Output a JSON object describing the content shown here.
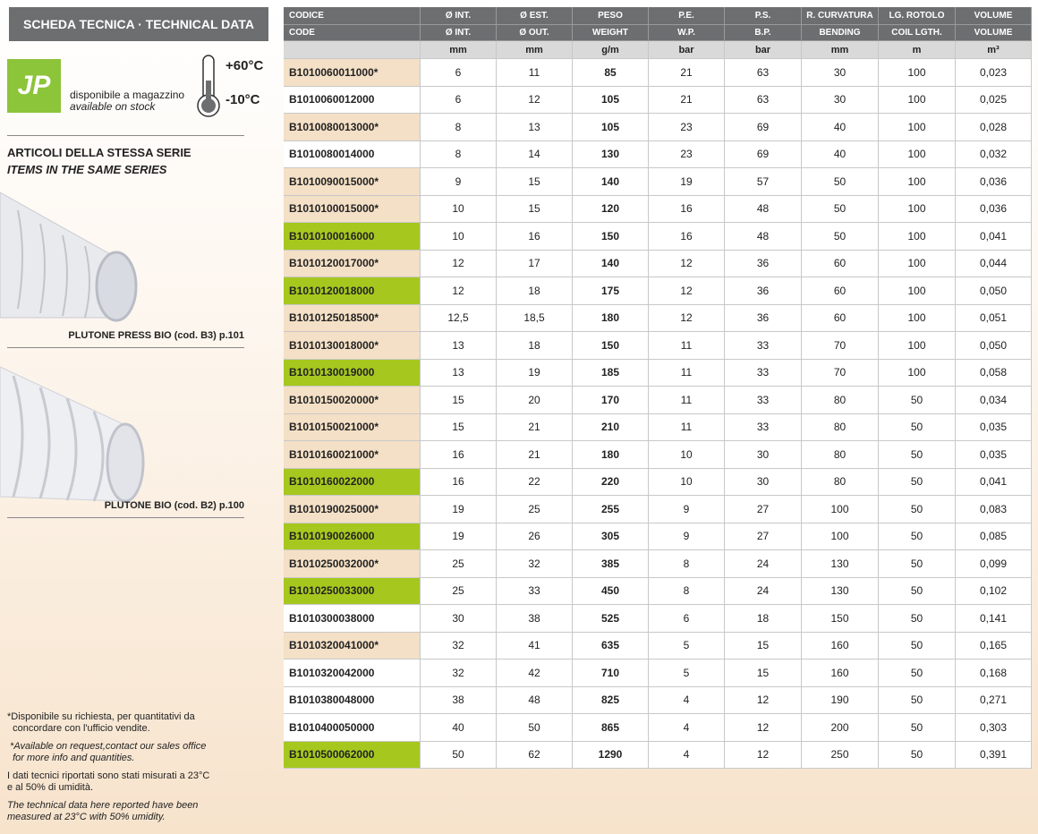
{
  "header": {
    "title": "SCHEDA TECNICA · TECHNICAL DATA"
  },
  "stock": {
    "logo": "JP",
    "label_it": "disponibile a magazzino",
    "label_en": "available on stock"
  },
  "temperature": {
    "max": "+60°C",
    "min": "-10°C"
  },
  "series": {
    "title_it": "ARTICOLI DELLA STESSA SERIE",
    "title_en": "ITEMS IN THE SAME SERIES",
    "items": [
      {
        "caption": "PLUTONE PRESS BIO (cod. B3) p.101"
      },
      {
        "caption": "PLUTONE BIO (cod. B2) p.100"
      }
    ]
  },
  "notes": [
    {
      "lines": [
        "*Disponibile su richiesta, per quantitativi da",
        "  concordare con l'ufficio vendite."
      ],
      "italic": false
    },
    {
      "lines": [
        " *Available on request,contact our sales office",
        "  for more info and quantities."
      ],
      "italic": true
    },
    {
      "lines": [
        "I dati tecnici riportati sono stati misurati a 23°C",
        "e al 50% di umidità."
      ],
      "italic": false
    },
    {
      "lines": [
        "The technical data here reported have been",
        "measured at 23°C with 50% umidity."
      ],
      "italic": true
    }
  ],
  "table": {
    "header_it": [
      "CODICE",
      "Ø INT.",
      "Ø EST.",
      "PESO",
      "P.E.",
      "P.S.",
      "R. CURVATURA",
      "LG. ROTOLO",
      "VOLUME"
    ],
    "header_en": [
      "CODE",
      "Ø INT.",
      "Ø OUT.",
      "WEIGHT",
      "W.P.",
      "B.P.",
      "BENDING",
      "COIL LGTH.",
      "VOLUME"
    ],
    "units": [
      "mm",
      "mm",
      "g/m",
      "bar",
      "bar",
      "mm",
      "m",
      "m³"
    ],
    "code_colors": [
      "#f4e0c6",
      "#ffffff",
      "#f4e0c6",
      "#ffffff",
      "#f4e0c6",
      "#f4e0c6",
      "#a6c81e",
      "#f4e0c6",
      "#a6c81e",
      "#f4e0c6",
      "#f4e0c6",
      "#a6c81e",
      "#f4e0c6",
      "#f4e0c6",
      "#f4e0c6",
      "#a6c81e",
      "#f4e0c6",
      "#a6c81e",
      "#f4e0c6",
      "#a6c81e",
      "#ffffff",
      "#f4e0c6",
      "#ffffff",
      "#ffffff",
      "#ffffff",
      "#a6c81e"
    ],
    "rows": [
      [
        "B1010060011000*",
        "6",
        "11",
        "85",
        "21",
        "63",
        "30",
        "100",
        "0,023"
      ],
      [
        "B1010060012000",
        "6",
        "12",
        "105",
        "21",
        "63",
        "30",
        "100",
        "0,025"
      ],
      [
        "B1010080013000*",
        "8",
        "13",
        "105",
        "23",
        "69",
        "40",
        "100",
        "0,028"
      ],
      [
        "B1010080014000",
        "8",
        "14",
        "130",
        "23",
        "69",
        "40",
        "100",
        "0,032"
      ],
      [
        "B1010090015000*",
        "9",
        "15",
        "140",
        "19",
        "57",
        "50",
        "100",
        "0,036"
      ],
      [
        "B1010100015000*",
        "10",
        "15",
        "120",
        "16",
        "48",
        "50",
        "100",
        "0,036"
      ],
      [
        "B1010100016000",
        "10",
        "16",
        "150",
        "16",
        "48",
        "50",
        "100",
        "0,041"
      ],
      [
        "B1010120017000*",
        "12",
        "17",
        "140",
        "12",
        "36",
        "60",
        "100",
        "0,044"
      ],
      [
        "B1010120018000",
        "12",
        "18",
        "175",
        "12",
        "36",
        "60",
        "100",
        "0,050"
      ],
      [
        "B1010125018500*",
        "12,5",
        "18,5",
        "180",
        "12",
        "36",
        "60",
        "100",
        "0,051"
      ],
      [
        "B1010130018000*",
        "13",
        "18",
        "150",
        "11",
        "33",
        "70",
        "100",
        "0,050"
      ],
      [
        "B1010130019000",
        "13",
        "19",
        "185",
        "11",
        "33",
        "70",
        "100",
        "0,058"
      ],
      [
        "B1010150020000*",
        "15",
        "20",
        "170",
        "11",
        "33",
        "80",
        "50",
        "0,034"
      ],
      [
        "B1010150021000*",
        "15",
        "21",
        "210",
        "11",
        "33",
        "80",
        "50",
        "0,035"
      ],
      [
        "B1010160021000*",
        "16",
        "21",
        "180",
        "10",
        "30",
        "80",
        "50",
        "0,035"
      ],
      [
        "B1010160022000",
        "16",
        "22",
        "220",
        "10",
        "30",
        "80",
        "50",
        "0,041"
      ],
      [
        "B1010190025000*",
        "19",
        "25",
        "255",
        "9",
        "27",
        "100",
        "50",
        "0,083"
      ],
      [
        "B1010190026000",
        "19",
        "26",
        "305",
        "9",
        "27",
        "100",
        "50",
        "0,085"
      ],
      [
        "B1010250032000*",
        "25",
        "32",
        "385",
        "8",
        "24",
        "130",
        "50",
        "0,099"
      ],
      [
        "B1010250033000",
        "25",
        "33",
        "450",
        "8",
        "24",
        "130",
        "50",
        "0,102"
      ],
      [
        "B1010300038000",
        "30",
        "38",
        "525",
        "6",
        "18",
        "150",
        "50",
        "0,141"
      ],
      [
        "B1010320041000*",
        "32",
        "41",
        "635",
        "5",
        "15",
        "160",
        "50",
        "0,165"
      ],
      [
        "B1010320042000",
        "32",
        "42",
        "710",
        "5",
        "15",
        "160",
        "50",
        "0,168"
      ],
      [
        "B1010380048000",
        "38",
        "48",
        "825",
        "4",
        "12",
        "190",
        "50",
        "0,271"
      ],
      [
        "B1010400050000",
        "40",
        "50",
        "865",
        "4",
        "12",
        "200",
        "50",
        "0,303"
      ],
      [
        "B1010500062000",
        "50",
        "62",
        "1290",
        "4",
        "12",
        "250",
        "50",
        "0,391"
      ]
    ]
  }
}
